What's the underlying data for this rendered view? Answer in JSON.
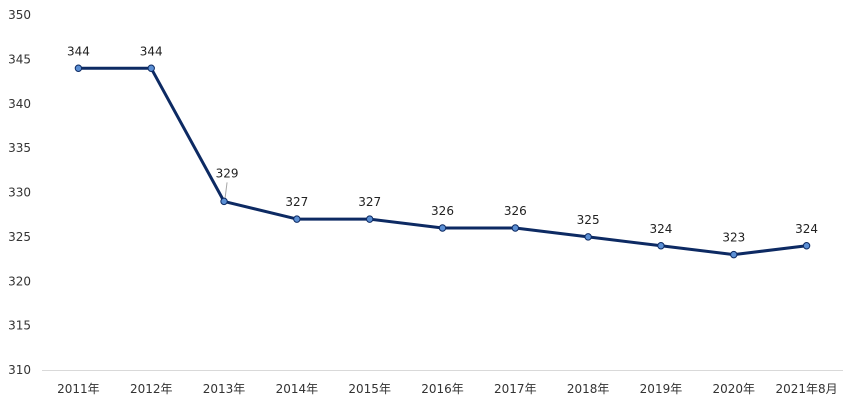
{
  "chart_data": {
    "type": "line",
    "categories": [
      "2011年",
      "2012年",
      "2013年",
      "2014年",
      "2015年",
      "2016年",
      "2017年",
      "2018年",
      "2019年",
      "2020年",
      "2021年8月"
    ],
    "series": [
      {
        "values": [
          344,
          344,
          329,
          327,
          327,
          326,
          326,
          325,
          324,
          323,
          324
        ]
      }
    ],
    "data_labels": [
      "344",
      "344",
      "329",
      "327",
      "327",
      "326",
      "326",
      "325",
      "324",
      "323",
      "324"
    ],
    "y_ticks": [
      "310",
      "315",
      "320",
      "325",
      "330",
      "335",
      "340",
      "345",
      "350"
    ],
    "ylim": [
      310,
      350
    ],
    "grid": false,
    "legend": "none",
    "colors": {
      "line": "#0d2a63",
      "marker_fill": "#5b8fd4",
      "marker_stroke": "#0d2a63",
      "axis": "#d9d9d9",
      "leader": "#a6a6a6"
    }
  }
}
